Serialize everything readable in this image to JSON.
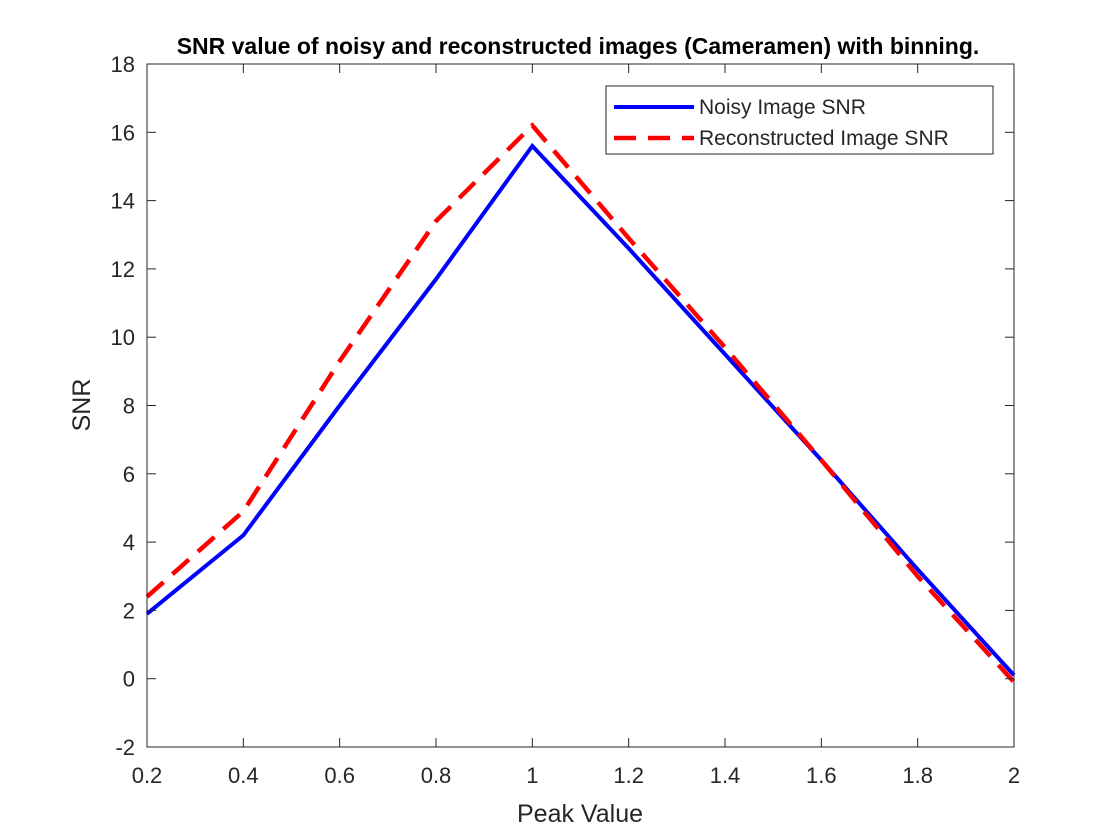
{
  "chart_data": {
    "type": "line",
    "title": "SNR value of noisy and reconstructed images (Cameramen) with binning.",
    "xlabel": "Peak Value",
    "ylabel": "SNR",
    "xlim": [
      0.2,
      2
    ],
    "ylim": [
      -2,
      18
    ],
    "xticks": [
      0.2,
      0.4,
      0.6,
      0.8,
      1,
      1.2,
      1.4,
      1.6,
      1.8,
      2
    ],
    "xtick_labels": [
      "0.2",
      "0.4",
      "0.6",
      "0.8",
      "1",
      "1.2",
      "1.4",
      "1.6",
      "1.8",
      "2"
    ],
    "yticks": [
      -2,
      0,
      2,
      4,
      6,
      8,
      10,
      12,
      14,
      16,
      18
    ],
    "ytick_labels": [
      "-2",
      "0",
      "2",
      "4",
      "6",
      "8",
      "10",
      "12",
      "14",
      "16",
      "18"
    ],
    "grid": false,
    "legend_position": "top-right",
    "series": [
      {
        "name": "Noisy Image SNR",
        "color": "#0000ff",
        "style": "solid",
        "x": [
          0.2,
          0.4,
          0.6,
          0.8,
          1.0,
          1.2,
          1.4,
          1.6,
          1.8,
          2.0
        ],
        "y": [
          1.9,
          4.2,
          8.0,
          11.7,
          15.6,
          12.6,
          9.5,
          6.4,
          3.2,
          0.1
        ]
      },
      {
        "name": "Reconstructed Image SNR",
        "color": "#ff0000",
        "style": "dashed",
        "x": [
          0.2,
          0.4,
          0.6,
          0.8,
          1.0,
          1.2,
          1.4,
          1.6,
          1.8,
          2.0
        ],
        "y": [
          2.4,
          4.9,
          9.3,
          13.4,
          16.2,
          12.9,
          9.7,
          6.4,
          3.0,
          -0.1
        ]
      }
    ]
  }
}
